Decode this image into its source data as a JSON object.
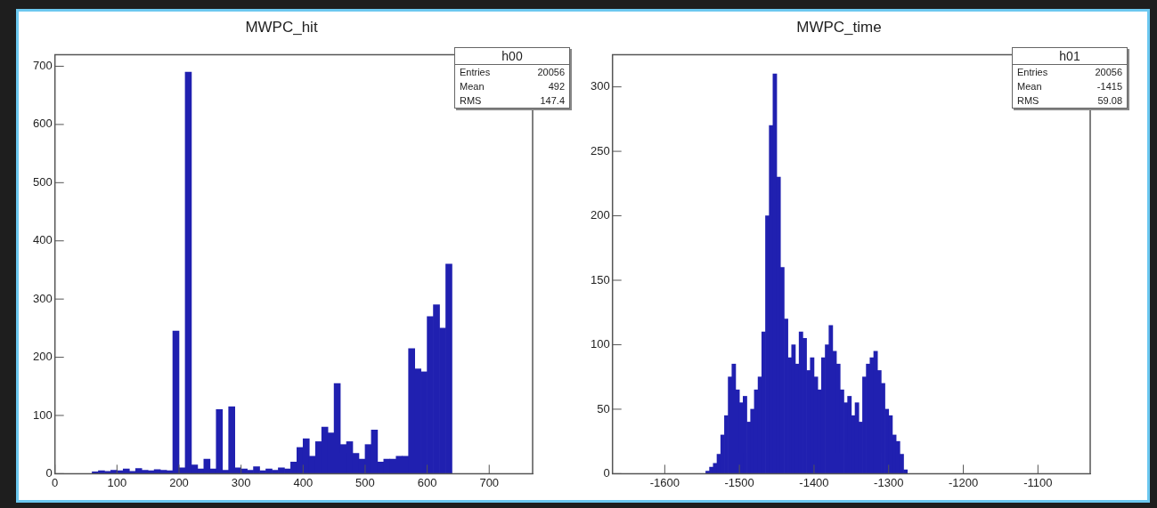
{
  "chart_data": [
    {
      "type": "histogram",
      "title": "MWPC_hit",
      "color": "#2020b0",
      "xlim": [
        0,
        770
      ],
      "ylim": [
        0,
        720
      ],
      "xticks": [
        0,
        100,
        200,
        300,
        400,
        500,
        600,
        700
      ],
      "yticks": [
        0,
        100,
        200,
        300,
        400,
        500,
        600,
        700
      ],
      "grid": false,
      "legend": false,
      "bins": [
        0,
        10,
        20,
        30,
        40,
        50,
        60,
        70,
        80,
        90,
        100,
        110,
        120,
        130,
        140,
        150,
        160,
        170,
        180,
        190,
        200,
        210,
        220,
        230,
        240,
        250,
        260,
        270,
        280,
        290,
        300,
        310,
        320,
        330,
        340,
        350,
        360,
        370,
        380,
        390,
        400,
        410,
        420,
        430,
        440,
        450,
        460,
        470,
        480,
        490,
        500,
        510,
        520,
        530,
        540,
        550,
        560,
        570,
        580,
        590,
        600,
        610,
        620,
        630,
        640,
        650,
        660,
        670,
        680,
        690,
        700,
        710,
        720,
        730,
        740,
        750,
        760,
        770
      ],
      "values": [
        0,
        0,
        0,
        0,
        0,
        0,
        3,
        5,
        4,
        6,
        5,
        8,
        4,
        9,
        6,
        5,
        7,
        6,
        5,
        245,
        10,
        690,
        15,
        8,
        25,
        8,
        110,
        6,
        115,
        10,
        8,
        6,
        12,
        5,
        8,
        6,
        10,
        8,
        20,
        45,
        60,
        30,
        55,
        80,
        70,
        155,
        50,
        55,
        35,
        25,
        50,
        75,
        20,
        25,
        25,
        30,
        30,
        215,
        180,
        175,
        270,
        290,
        250,
        360,
        0,
        0,
        0,
        0,
        0,
        0,
        0,
        0,
        0,
        0,
        0,
        0,
        0
      ],
      "annotations": [
        "h00",
        "Entries 20056",
        "Mean 492",
        "RMS 147.4"
      ]
    },
    {
      "type": "histogram",
      "title": "MWPC_time",
      "color": "#2020b0",
      "xlim": [
        -1670,
        -1030
      ],
      "ylim": [
        0,
        325
      ],
      "xticks": [
        -1600,
        -1500,
        -1400,
        -1300,
        -1200,
        -1100
      ],
      "yticks": [
        0,
        50,
        100,
        150,
        200,
        250,
        300
      ],
      "grid": false,
      "legend": false,
      "bins": [
        -1670,
        -1665,
        -1660,
        -1655,
        -1650,
        -1645,
        -1640,
        -1635,
        -1630,
        -1625,
        -1620,
        -1615,
        -1610,
        -1605,
        -1600,
        -1595,
        -1590,
        -1585,
        -1580,
        -1575,
        -1570,
        -1565,
        -1560,
        -1555,
        -1550,
        -1545,
        -1540,
        -1535,
        -1530,
        -1525,
        -1520,
        -1515,
        -1510,
        -1505,
        -1500,
        -1495,
        -1490,
        -1485,
        -1480,
        -1475,
        -1470,
        -1465,
        -1460,
        -1455,
        -1450,
        -1445,
        -1440,
        -1435,
        -1430,
        -1425,
        -1420,
        -1415,
        -1410,
        -1405,
        -1400,
        -1395,
        -1390,
        -1385,
        -1380,
        -1375,
        -1370,
        -1365,
        -1360,
        -1355,
        -1350,
        -1345,
        -1340,
        -1335,
        -1330,
        -1325,
        -1320,
        -1315,
        -1310,
        -1305,
        -1300,
        -1295,
        -1290,
        -1285,
        -1280,
        -1275,
        -1270,
        -1265,
        -1260,
        -1255,
        -1250,
        -1245,
        -1240,
        -1235,
        -1230,
        -1225,
        -1220,
        -1215,
        -1210,
        -1205,
        -1200,
        -1195,
        -1190,
        -1185,
        -1180,
        -1175,
        -1170,
        -1165,
        -1160,
        -1155,
        -1150,
        -1145,
        -1140,
        -1135,
        -1130,
        -1125,
        -1120,
        -1115,
        -1110,
        -1105,
        -1100,
        -1095,
        -1090,
        -1085,
        -1080,
        -1075,
        -1070,
        -1065,
        -1060,
        -1055,
        -1050,
        -1045,
        -1040,
        -1035,
        -1030
      ],
      "values": [
        0,
        0,
        0,
        0,
        0,
        0,
        0,
        0,
        0,
        0,
        0,
        0,
        0,
        0,
        0,
        0,
        0,
        0,
        0,
        0,
        0,
        0,
        0,
        0,
        0,
        2,
        5,
        8,
        15,
        30,
        45,
        75,
        85,
        65,
        55,
        60,
        40,
        50,
        65,
        75,
        110,
        200,
        270,
        310,
        230,
        160,
        120,
        90,
        100,
        85,
        110,
        105,
        80,
        90,
        75,
        65,
        90,
        100,
        115,
        95,
        85,
        65,
        55,
        60,
        45,
        55,
        40,
        75,
        85,
        90,
        95,
        80,
        70,
        50,
        45,
        30,
        25,
        15,
        3,
        0,
        0,
        0,
        0,
        0,
        0,
        0,
        0,
        0,
        0,
        0,
        0,
        0,
        0,
        0,
        0,
        0,
        0,
        0,
        0,
        0,
        0,
        0,
        0,
        0,
        0,
        0,
        0,
        0,
        0,
        0,
        0,
        0,
        0,
        0,
        0,
        0,
        0,
        0,
        0,
        0,
        0,
        0,
        0,
        0,
        0,
        0,
        0,
        0
      ],
      "annotations": [
        "h01",
        "Entries 20056",
        "Mean -1415",
        "RMS 59.08"
      ]
    }
  ]
}
